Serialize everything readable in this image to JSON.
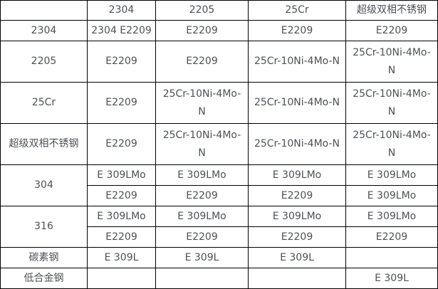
{
  "colors": {
    "background": "#ffffff",
    "border": "#000000",
    "text": "#4d5156"
  },
  "table": {
    "description_semantic": "filler-metal-selection-matrix",
    "column_headers": [
      "",
      "2304",
      "2205",
      "25Cr",
      "超级双相不锈钢"
    ],
    "rows": [
      {
        "label": "2304",
        "cells": [
          "2304 E2209",
          "E2209",
          "E2209",
          "E2209"
        ]
      },
      {
        "label": "2205",
        "cells": [
          "E2209",
          "E2209",
          "25Cr-10Ni-4Mo-N",
          "25Cr-10Ni-4Mo-N"
        ]
      },
      {
        "label": "25Cr",
        "cells": [
          "E2209",
          "25Cr-10Ni-4Mo-N",
          "25Cr-10Ni-4Mo-N",
          "25Cr-10Ni-4Mo-N"
        ]
      },
      {
        "label": "超级双相不锈钢",
        "cells": [
          "E2209",
          "25Cr-10Ni-4Mo-N",
          "25Cr-10Ni-4Mo-N",
          "25Cr-10Ni-4Mo-N"
        ]
      },
      {
        "label": "304",
        "subrows": [
          [
            "E 309LMo",
            "E 309LMo",
            "E 309LMo",
            "E 309LMo"
          ],
          [
            "E2209",
            "E2209",
            "E2209",
            "E 309LMo"
          ]
        ]
      },
      {
        "label": "316",
        "subrows": [
          [
            "E 309LMo",
            "E 309LMo",
            "E 309LMo",
            "E 309LMo"
          ],
          [
            "E2209",
            "E2209",
            "E2209",
            "E2209"
          ]
        ]
      },
      {
        "label": "碳素钢",
        "cells": [
          "E 309L",
          "E 309L",
          "E 309L",
          ""
        ]
      },
      {
        "label": "低合金钢",
        "cells": [
          "",
          "",
          "",
          "E 309L"
        ]
      }
    ]
  }
}
